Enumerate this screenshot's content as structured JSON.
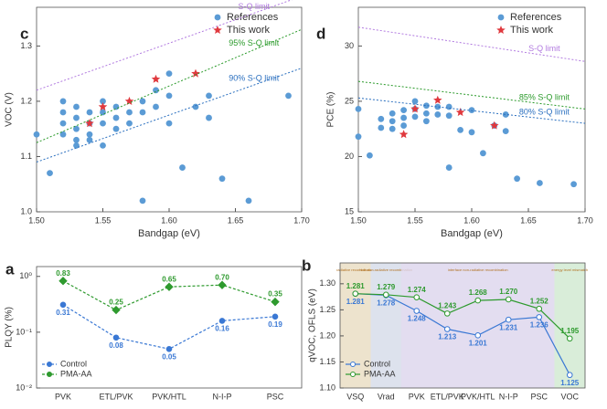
{
  "chart_data": [
    {
      "type": "scatter",
      "title": "c",
      "xlabel": "Bandgap (eV)",
      "ylabel": "VOC (V)",
      "xlim": [
        1.5,
        1.7
      ],
      "xticks": [
        {
          "value": 1.5,
          "label": "1.50"
        },
        1.55,
        {
          "value": 1.6,
          "label": "1.60"
        },
        1.65,
        {
          "value": 1.7,
          "label": "1.70"
        }
      ],
      "ylim": [
        1.0,
        1.37
      ],
      "yticks": [
        {
          "value": 1.0,
          "label": "1.0"
        },
        1.1,
        1.2,
        1.3
      ],
      "series": [
        {
          "name": "References",
          "type": "scatter",
          "marker": "circle",
          "color": "#5b9bd5",
          "x": [
            1.5,
            1.51,
            1.52,
            1.52,
            1.52,
            1.52,
            1.53,
            1.53,
            1.53,
            1.53,
            1.53,
            1.54,
            1.54,
            1.54,
            1.54,
            1.55,
            1.55,
            1.55,
            1.55,
            1.56,
            1.56,
            1.56,
            1.57,
            1.57,
            1.58,
            1.58,
            1.58,
            1.59,
            1.59,
            1.6,
            1.6,
            1.6,
            1.61,
            1.62,
            1.63,
            1.63,
            1.64,
            1.66,
            1.69
          ],
          "values": [
            1.14,
            1.07,
            1.2,
            1.18,
            1.16,
            1.14,
            1.19,
            1.17,
            1.15,
            1.13,
            1.12,
            1.18,
            1.16,
            1.14,
            1.13,
            1.2,
            1.18,
            1.16,
            1.12,
            1.19,
            1.17,
            1.15,
            1.18,
            1.16,
            1.2,
            1.18,
            1.02,
            1.19,
            1.22,
            1.25,
            1.21,
            1.16,
            1.08,
            1.19,
            1.21,
            1.17,
            1.06,
            1.02,
            1.21
          ]
        },
        {
          "name": "This work",
          "type": "scatter",
          "marker": "star",
          "color": "#e0393e",
          "x": [
            1.54,
            1.55,
            1.57,
            1.59,
            1.62
          ],
          "values": [
            1.16,
            1.19,
            1.2,
            1.24,
            1.25
          ]
        },
        {
          "name": "S-Q limit",
          "type": "line",
          "color": "#b27be0",
          "x": [
            1.5,
            1.7
          ],
          "values": [
            1.22,
            1.39
          ]
        },
        {
          "name": "95% S-Q limit",
          "type": "line",
          "color": "#2a9a2a",
          "x": [
            1.5,
            1.7
          ],
          "values": [
            1.125,
            1.33
          ]
        },
        {
          "name": "90% S-Q limit",
          "type": "line",
          "color": "#2a6fbf",
          "x": [
            1.5,
            1.7
          ],
          "values": [
            1.09,
            1.26
          ]
        }
      ]
    },
    {
      "type": "scatter",
      "title": "d",
      "xlabel": "Bandgap (eV)",
      "ylabel": "PCE (%)",
      "xlim": [
        1.5,
        1.7
      ],
      "xticks": [
        {
          "value": 1.5,
          "label": "1.50"
        },
        1.55,
        {
          "value": 1.6,
          "label": "1.60"
        },
        1.65,
        {
          "value": 1.7,
          "label": "1.70"
        }
      ],
      "ylim": [
        15,
        33.5
      ],
      "yticks": [
        15,
        20,
        25,
        30
      ],
      "series": [
        {
          "name": "References",
          "type": "scatter",
          "marker": "circle",
          "color": "#5b9bd5",
          "x": [
            1.5,
            1.5,
            1.51,
            1.52,
            1.52,
            1.53,
            1.53,
            1.53,
            1.54,
            1.54,
            1.54,
            1.55,
            1.55,
            1.55,
            1.56,
            1.56,
            1.56,
            1.57,
            1.57,
            1.58,
            1.58,
            1.58,
            1.59,
            1.6,
            1.6,
            1.61,
            1.62,
            1.63,
            1.63,
            1.64,
            1.66,
            1.69
          ],
          "values": [
            24.3,
            21.8,
            20.1,
            23.4,
            22.6,
            23.9,
            23.2,
            22.5,
            24.2,
            23.5,
            22.8,
            25.0,
            24.3,
            23.6,
            24.6,
            23.9,
            23.2,
            24.5,
            23.8,
            24.5,
            23.7,
            19.0,
            22.4,
            24.2,
            22.2,
            20.3,
            22.8,
            23.8,
            22.3,
            18.0,
            17.6,
            17.5
          ]
        },
        {
          "name": "This work",
          "type": "scatter",
          "marker": "star",
          "color": "#e0393e",
          "x": [
            1.54,
            1.55,
            1.57,
            1.59,
            1.62
          ],
          "values": [
            22.0,
            24.3,
            25.1,
            24.0,
            22.8
          ]
        },
        {
          "name": "S-Q limit",
          "type": "line",
          "color": "#b27be0",
          "x": [
            1.5,
            1.7
          ],
          "values": [
            31.7,
            28.6
          ]
        },
        {
          "name": "85% S-Q limit",
          "type": "line",
          "color": "#2a9a2a",
          "x": [
            1.5,
            1.7
          ],
          "values": [
            26.8,
            24.3
          ]
        },
        {
          "name": "80% S-Q limit",
          "type": "line",
          "color": "#2a6fbf",
          "x": [
            1.5,
            1.7
          ],
          "values": [
            25.3,
            23.0
          ]
        }
      ]
    },
    {
      "type": "line",
      "title": "a",
      "ylabel": "PLQY (%)",
      "log_y": true,
      "line_style": "dashed",
      "legend": "lower left",
      "categories": [
        "PVK",
        "ETL/PVK",
        "PVK/HTL",
        "N-I-P",
        "PSC"
      ],
      "ylim": [
        0.01,
        1.5
      ],
      "yticks": [
        {
          "value": 0.01,
          "label": "10⁻²"
        },
        {
          "value": 0.1,
          "label": "10⁻¹"
        },
        {
          "value": 1,
          "label": "10⁰"
        }
      ],
      "series": [
        {
          "name": "Control",
          "color": "#3a78d4",
          "marker": "circle",
          "label_side": "below",
          "values": [
            0.31,
            0.08,
            0.05,
            0.16,
            0.19
          ],
          "value_labels": [
            "0.31",
            "0.08",
            "0.05",
            "0.16",
            "0.19"
          ]
        },
        {
          "name": "PMA-AA",
          "color": "#2e9a2e",
          "marker": "diamond",
          "label_side": "above",
          "values": [
            0.83,
            0.25,
            0.65,
            0.7,
            0.35
          ],
          "value_labels": [
            "0.83",
            "0.25",
            "0.65",
            "0.70",
            "0.35"
          ]
        }
      ]
    },
    {
      "type": "line",
      "title": "b",
      "ylabel": "qVOC, OFLS (eV)",
      "log_y": false,
      "line_style": "solid",
      "legend": "lower left",
      "categories": [
        "VSQ",
        "Vrad",
        "PVK",
        "ETL/PVK",
        "PVK/HTL",
        "N-I-P",
        "PSC",
        "VOC"
      ],
      "ylim": [
        1.1,
        1.34
      ],
      "yticks": [
        {
          "value": 1.1,
          "label": "1.10"
        },
        1.15,
        {
          "value": 1.2,
          "label": "1.20"
        },
        1.25,
        {
          "value": 1.3,
          "label": "1.30"
        }
      ],
      "regions": [
        {
          "label": "radiative recombination",
          "color": "#e8dcc0",
          "start": 0,
          "end": 0
        },
        {
          "label": "bulk non-radiative recombination",
          "color": "#d4dbe8",
          "start": 1,
          "end": 1
        },
        {
          "label": "interface non-radiative recombination",
          "color": "#dcd4ec",
          "start": 2,
          "end": 6
        },
        {
          "label": "energy level mismatch",
          "color": "#cfe8cf",
          "start": 7,
          "end": 7
        }
      ],
      "series": [
        {
          "name": "Control",
          "color": "#3a78d4",
          "marker": "circle",
          "label_side": "below",
          "values": [
            1.281,
            1.278,
            1.248,
            1.213,
            1.201,
            1.231,
            1.236,
            1.125
          ],
          "value_labels": [
            "1.281",
            "1.278",
            "1.248",
            "1.213",
            "1.201",
            "1.231",
            "1.236",
            "1.125"
          ]
        },
        {
          "name": "PMA-AA",
          "color": "#2e9a2e",
          "marker": "circle",
          "label_side": "above",
          "values": [
            1.281,
            1.279,
            1.274,
            1.243,
            1.268,
            1.27,
            1.252,
            1.195
          ],
          "value_labels": [
            "1.281",
            "1.279",
            "1.274",
            "1.243",
            "1.268",
            "1.270",
            "1.252",
            "1.195"
          ]
        }
      ]
    }
  ]
}
